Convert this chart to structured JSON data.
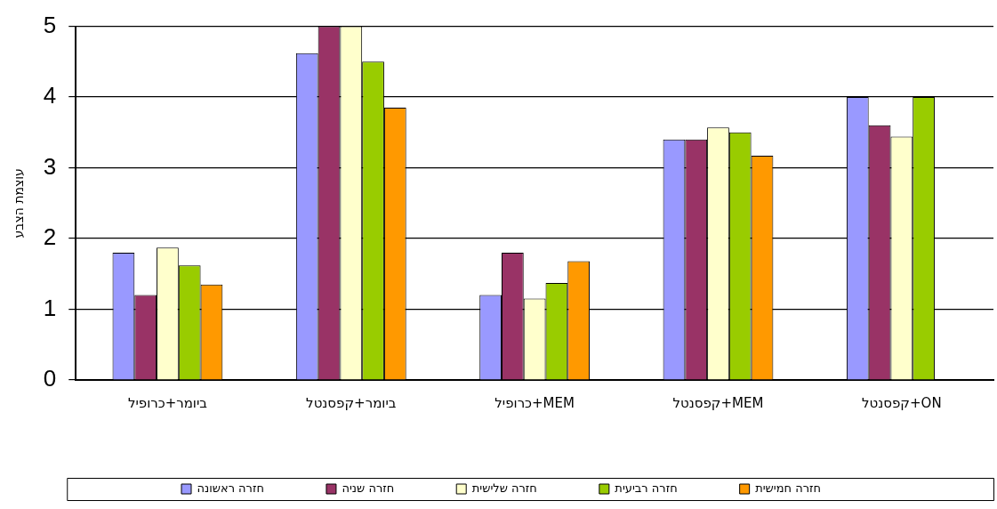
{
  "chart_data": {
    "type": "bar",
    "ylabel": "עוצמת הצבע",
    "categories": [
      "ביומר+כרופיל",
      "ביומר+קפסנטל",
      "כרופיל+MEM",
      "קפסנטל+MEM",
      "קפסנטל+ON"
    ],
    "series": [
      {
        "name": "חזרה ראשונה",
        "color": "#9999ff",
        "values": [
          1.8,
          4.62,
          1.2,
          3.4,
          4.0
        ]
      },
      {
        "name": "חזרה שניה",
        "color": "#993366",
        "values": [
          1.2,
          5.0,
          1.8,
          3.4,
          3.6
        ]
      },
      {
        "name": "חזרה שלישית",
        "color": "#ffffcc",
        "values": [
          1.87,
          5.0,
          1.15,
          3.57,
          3.44
        ]
      },
      {
        "name": "חזרה רביעית",
        "color": "#99cc00",
        "values": [
          1.62,
          4.5,
          1.37,
          3.5,
          4.0
        ]
      },
      {
        "name": "חזרה חמישית",
        "color": "#ff9900",
        "values": [
          1.35,
          3.85,
          1.68,
          3.17,
          null
        ]
      }
    ],
    "ylim": [
      0,
      5
    ],
    "yticks": [
      0,
      1,
      2,
      3,
      4,
      5
    ],
    "grid": "y",
    "legend": "bottom"
  }
}
